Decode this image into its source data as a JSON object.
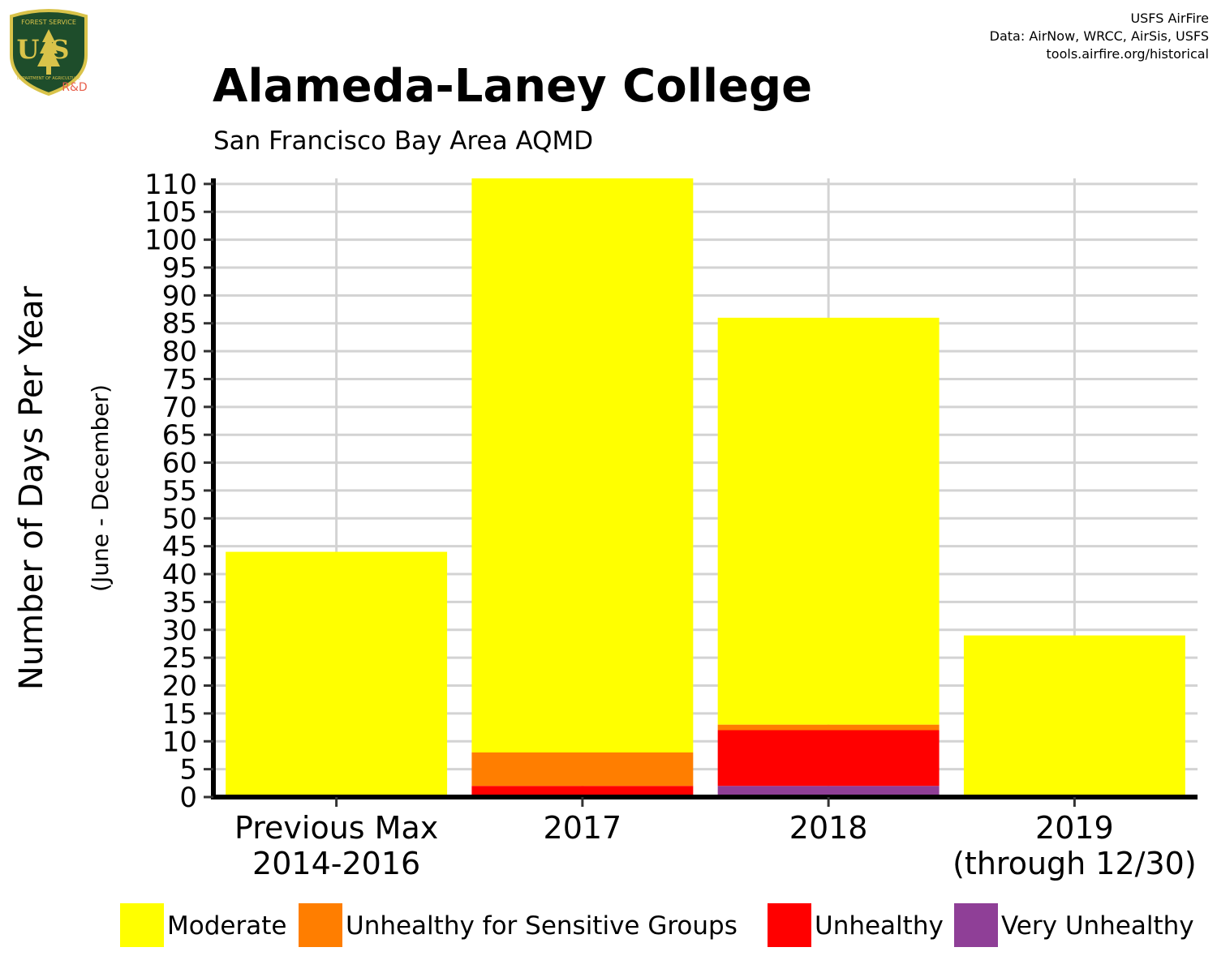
{
  "header": {
    "title": "Alameda-Laney College",
    "subtitle": "San Francisco Bay Area AQMD",
    "credits": [
      "USFS AirFire",
      "Data: AirNow, WRCC, AirSis, USFS",
      "tools.airfire.org/historical"
    ]
  },
  "logo": {
    "top_text": "FOREST SERVICE",
    "letters": "US",
    "bottom_text": "DEPARTMENT OF AGRICULTURE",
    "tag": "R&D",
    "colors": {
      "shield": "#1e4d2b",
      "gold": "#d9c34a",
      "tag": "#e8604c"
    }
  },
  "chart_data": {
    "type": "bar",
    "stacked": true,
    "ylabel": "Number of Days Per Year",
    "ylabel_sub": "(June - December)",
    "xlabel": "",
    "ylim": [
      0,
      111
    ],
    "yticks": [
      0,
      5,
      10,
      15,
      20,
      25,
      30,
      35,
      40,
      45,
      50,
      55,
      60,
      65,
      70,
      75,
      80,
      85,
      90,
      95,
      100,
      105,
      110
    ],
    "categories": [
      [
        "Previous Max",
        "2014-2016"
      ],
      [
        "2017"
      ],
      [
        "2018"
      ],
      [
        "2019",
        "(through 12/30)"
      ]
    ],
    "series": [
      {
        "name": "Very Unhealthy",
        "color": "#8f3f97",
        "values": [
          0,
          0,
          2,
          0
        ]
      },
      {
        "name": "Unhealthy",
        "color": "#ff0000",
        "values": [
          0,
          2,
          10,
          0
        ]
      },
      {
        "name": "Unhealthy for Sensitive Groups",
        "color": "#ff7e00",
        "values": [
          0,
          6,
          1,
          0
        ]
      },
      {
        "name": "Moderate",
        "color": "#ffff00",
        "values": [
          44,
          103,
          73,
          29
        ]
      }
    ],
    "grid": true,
    "legend_position": "bottom",
    "legend_order": [
      "Moderate",
      "Unhealthy for Sensitive Groups",
      "Unhealthy",
      "Very Unhealthy"
    ]
  }
}
